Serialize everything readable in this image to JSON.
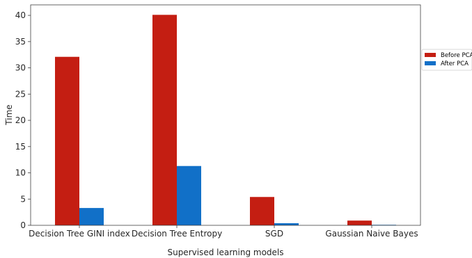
{
  "chart_data": {
    "type": "bar",
    "title": "",
    "xlabel": "Supervised learning models",
    "ylabel": "Time",
    "categories": [
      "Decision Tree GINI index",
      "Decision Tree Entropy",
      "SGD",
      "Gaussian Naive Bayes"
    ],
    "series": [
      {
        "name": "Before PCA",
        "color": "#c41e12",
        "values": [
          32.1,
          40.1,
          5.4,
          0.9
        ]
      },
      {
        "name": "After PCA",
        "color": "#1170c8",
        "values": [
          3.3,
          11.3,
          0.4,
          0.1
        ]
      }
    ],
    "ylim": [
      0,
      42
    ],
    "yticks": [
      0,
      5,
      10,
      15,
      20,
      25,
      30,
      35,
      40
    ],
    "grid": false,
    "legend_position": "right"
  }
}
